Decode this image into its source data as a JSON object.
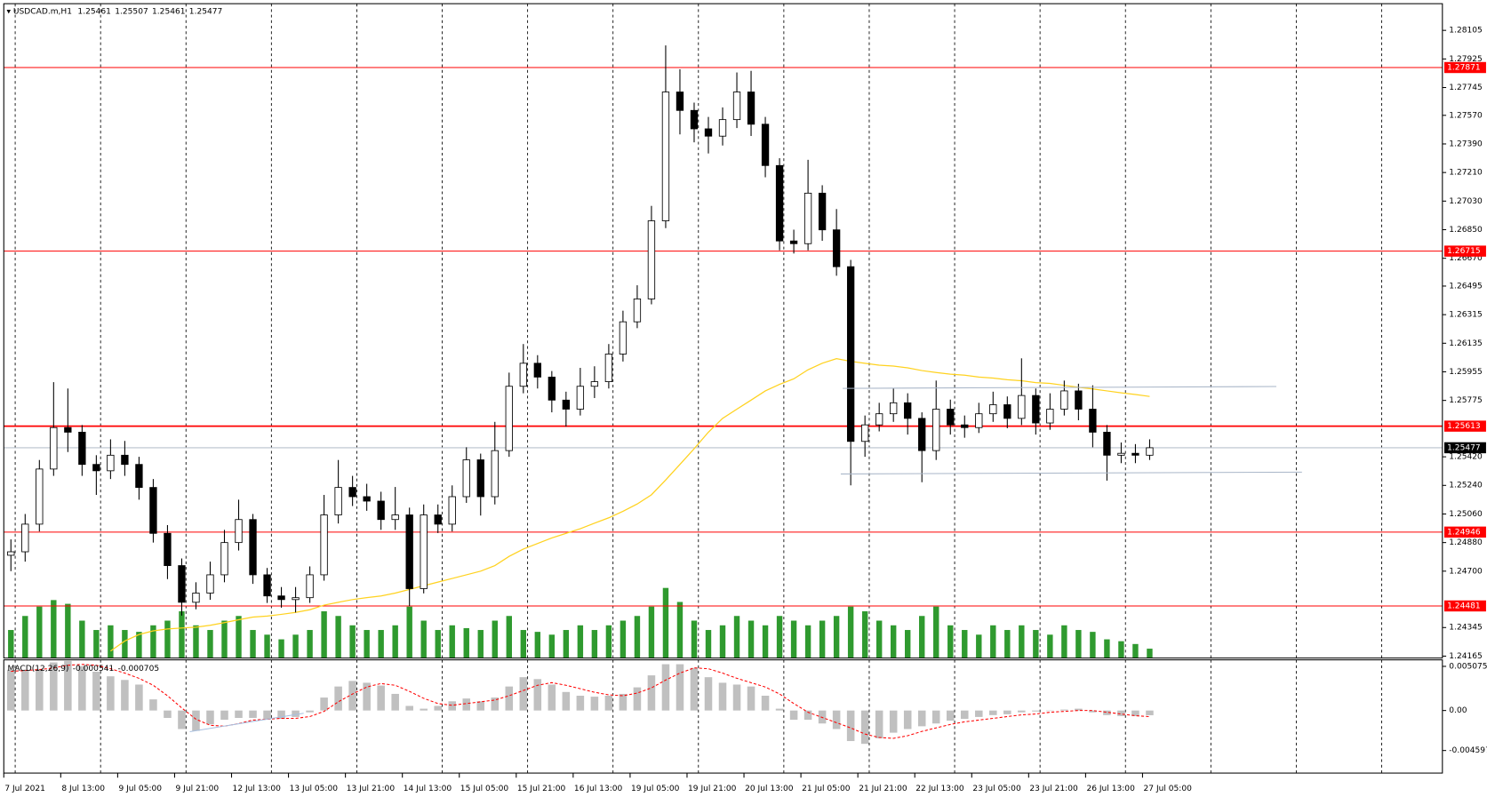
{
  "chart_data": [
    {
      "type": "candlestick",
      "title": "USDCAD.m,H1",
      "header_values": [
        1.25461,
        1.25507,
        1.25461,
        1.25477
      ],
      "x_labels": [
        "7 Jul 2021",
        "8 Jul 13:00",
        "9 Jul 05:00",
        "9 Jul 21:00",
        "12 Jul 13:00",
        "13 Jul 05:00",
        "13 Jul 21:00",
        "14 Jul 13:00",
        "15 Jul 05:00",
        "15 Jul 21:00",
        "16 Jul 13:00",
        "19 Jul 05:00",
        "19 Jul 21:00",
        "20 Jul 13:00",
        "21 Jul 05:00",
        "21 Jul 21:00",
        "22 Jul 13:00",
        "23 Jul 05:00",
        "23 Jul 21:00",
        "26 Jul 13:00",
        "27 Jul 05:00"
      ],
      "open": [
        1.248,
        1.24822,
        1.24996,
        1.25343,
        1.25604,
        1.25575,
        1.25372,
        1.25332,
        1.2543,
        1.25372,
        1.25227,
        1.24938,
        1.24735,
        1.24504,
        1.24562,
        1.24677,
        1.2488,
        1.25025,
        1.24677,
        1.24544,
        1.24521,
        1.24533,
        1.24677,
        1.25054,
        1.25227,
        1.25169,
        1.25141,
        1.25025,
        1.25054,
        1.2459,
        1.25054,
        1.24996,
        1.25169,
        1.25401,
        1.25169,
        1.25459,
        1.25864,
        1.26009,
        1.25922,
        1.25777,
        1.2572,
        1.25864,
        1.25893,
        1.26067,
        1.2627,
        1.26414,
        1.26906,
        1.27717,
        1.27601,
        1.27485,
        1.27439,
        1.27543,
        1.27717,
        1.27514,
        1.27254,
        1.26779,
        1.26762,
        1.2708,
        1.26849,
        1.26617,
        1.25517,
        1.25621,
        1.25691,
        1.2576,
        1.25662,
        1.25459,
        1.2572,
        1.25621,
        1.25604,
        1.25691,
        1.25748,
        1.25662,
        1.25806,
        1.25633,
        1.2572,
        1.25835,
        1.2572,
        1.25575,
        1.2543,
        1.25442,
        1.2543
      ],
      "high": [
        1.249,
        1.2506,
        1.254,
        1.2589,
        1.2585,
        1.2562,
        1.2543,
        1.2553,
        1.2552,
        1.2542,
        1.2528,
        1.2499,
        1.2478,
        1.2463,
        1.2476,
        1.2496,
        1.2515,
        1.2506,
        1.2472,
        1.246,
        1.246,
        1.2473,
        1.2518,
        1.254,
        1.253,
        1.2525,
        1.252,
        1.2523,
        1.251,
        1.2512,
        1.2512,
        1.2524,
        1.2548,
        1.2544,
        1.2564,
        1.2595,
        1.2613,
        1.2606,
        1.2596,
        1.2583,
        1.2598,
        1.2599,
        1.2613,
        1.2634,
        1.265,
        1.27,
        1.2801,
        1.2786,
        1.2765,
        1.2756,
        1.2762,
        1.2784,
        1.2785,
        1.2756,
        1.273,
        1.2685,
        1.2729,
        1.2713,
        1.2698,
        1.2666,
        1.2568,
        1.2576,
        1.2585,
        1.2582,
        1.257,
        1.259,
        1.2578,
        1.2568,
        1.2576,
        1.2583,
        1.258,
        1.2604,
        1.2585,
        1.2582,
        1.259,
        1.2588,
        1.2587,
        1.2562,
        1.2551,
        1.255,
        1.2553
      ],
      "low": [
        1.247,
        1.2476,
        1.2495,
        1.253,
        1.2545,
        1.253,
        1.2518,
        1.2528,
        1.253,
        1.2515,
        1.2488,
        1.2465,
        1.2442,
        1.2446,
        1.2452,
        1.2463,
        1.2483,
        1.2462,
        1.245,
        1.2447,
        1.2444,
        1.245,
        1.2464,
        1.25,
        1.2511,
        1.2508,
        1.2496,
        1.2496,
        1.2448,
        1.2456,
        1.2494,
        1.2495,
        1.2513,
        1.2505,
        1.2512,
        1.2542,
        1.2582,
        1.2585,
        1.257,
        1.2561,
        1.2568,
        1.2579,
        1.2585,
        1.2602,
        1.2623,
        1.2638,
        1.2686,
        1.2745,
        1.274,
        1.2733,
        1.2738,
        1.2749,
        1.2744,
        1.2718,
        1.2672,
        1.267,
        1.2672,
        1.2678,
        1.2656,
        1.2524,
        1.2542,
        1.2558,
        1.2564,
        1.2556,
        1.2526,
        1.254,
        1.2556,
        1.2554,
        1.2557,
        1.2564,
        1.256,
        1.2562,
        1.2556,
        1.2559,
        1.2568,
        1.2565,
        1.2548,
        1.2527,
        1.2538,
        1.2538,
        1.254
      ],
      "close": [
        1.24822,
        1.24996,
        1.25343,
        1.25604,
        1.25575,
        1.25372,
        1.25332,
        1.2543,
        1.25372,
        1.25227,
        1.24938,
        1.24735,
        1.24504,
        1.24562,
        1.24677,
        1.2488,
        1.25025,
        1.24677,
        1.24544,
        1.24521,
        1.24533,
        1.24677,
        1.25054,
        1.25227,
        1.25169,
        1.25141,
        1.25025,
        1.25054,
        1.2459,
        1.25054,
        1.24996,
        1.25169,
        1.25401,
        1.25169,
        1.25459,
        1.25864,
        1.26009,
        1.25922,
        1.25777,
        1.2572,
        1.25864,
        1.25893,
        1.26067,
        1.2627,
        1.26414,
        1.26906,
        1.27717,
        1.27601,
        1.27485,
        1.27439,
        1.27543,
        1.27717,
        1.27514,
        1.27254,
        1.26779,
        1.26762,
        1.2708,
        1.26849,
        1.26617,
        1.25517,
        1.25621,
        1.25691,
        1.2576,
        1.25662,
        1.25459,
        1.2572,
        1.25621,
        1.25604,
        1.25691,
        1.25748,
        1.25662,
        1.25806,
        1.25633,
        1.2572,
        1.25835,
        1.2572,
        1.25575,
        1.2543,
        1.25442,
        1.2543,
        1.25477
      ],
      "ma": {
        "color": "#ffd21f",
        "values": [
          null,
          null,
          null,
          null,
          null,
          null,
          null,
          1.24197,
          1.2426,
          1.24301,
          1.24324,
          1.24336,
          1.24342,
          1.24347,
          1.24359,
          1.24376,
          1.24394,
          1.24411,
          1.24417,
          1.24428,
          1.2444,
          1.24457,
          1.24486,
          1.24504,
          1.24521,
          1.24533,
          1.24544,
          1.24562,
          1.24585,
          1.24608,
          1.24631,
          1.24654,
          1.24677,
          1.247,
          1.24735,
          1.24793,
          1.24839,
          1.24874,
          1.24909,
          1.24938,
          1.24967,
          1.25002,
          1.25036,
          1.25077,
          1.25123,
          1.25181,
          1.25274,
          1.25372,
          1.25471,
          1.25575,
          1.25662,
          1.2572,
          1.25777,
          1.25835,
          1.25876,
          1.25911,
          1.25968,
          1.26009,
          1.26038,
          1.26021,
          1.26009,
          1.25997,
          1.25991,
          1.2598,
          1.25963,
          1.25951,
          1.2594,
          1.25934,
          1.25922,
          1.25916,
          1.25905,
          1.25899,
          1.25887,
          1.25882,
          1.2587,
          1.25858,
          1.25847,
          1.25835,
          1.25823,
          1.25812,
          1.258
        ]
      },
      "volume": {
        "color": "#2f9a2f",
        "values": [
          30,
          45,
          55,
          62,
          58,
          40,
          30,
          35,
          30,
          28,
          35,
          40,
          50,
          35,
          30,
          40,
          45,
          30,
          25,
          20,
          25,
          30,
          50,
          45,
          35,
          30,
          30,
          35,
          55,
          40,
          30,
          35,
          32,
          30,
          40,
          45,
          30,
          28,
          25,
          30,
          35,
          30,
          35,
          40,
          45,
          55,
          75,
          60,
          40,
          30,
          35,
          45,
          40,
          35,
          45,
          40,
          35,
          40,
          45,
          55,
          50,
          40,
          35,
          30,
          45,
          55,
          35,
          30,
          25,
          35,
          30,
          35,
          30,
          25,
          35,
          30,
          28,
          20,
          18,
          15,
          10
        ],
        "lim": [
          0,
          700
        ]
      },
      "levels": [
        1.27871,
        1.26715,
        1.25613,
        1.24946,
        1.24481
      ],
      "level_color": "#ff0000",
      "current_price": 1.25477,
      "ylim": [
        1.24153,
        1.28273
      ],
      "yticks": [
        1.28105,
        1.27925,
        1.27745,
        {
          "value": 1.2757,
          "label": "1.27570"
        },
        {
          "value": 1.2739,
          "label": "1.27390"
        },
        {
          "value": 1.2721,
          "label": "1.27210"
        },
        {
          "value": 1.2703,
          "label": "1.27030"
        },
        {
          "value": 1.2685,
          "label": "1.26850"
        },
        {
          "value": 1.2667,
          "label": "1.26670"
        },
        1.26495,
        1.26315,
        1.26135,
        1.25955,
        1.25775,
        {
          "value": 1.2542,
          "label": "1.25420"
        },
        {
          "value": 1.2524,
          "label": "1.25240"
        },
        {
          "value": 1.2506,
          "label": "1.25060"
        },
        {
          "value": 1.2488,
          "label": "1.24880"
        },
        {
          "value": 1.247,
          "label": "1.24700"
        },
        1.24345,
        1.24165
      ]
    },
    {
      "type": "macd",
      "title": "MACD(12,26,9)",
      "histogram": {
        "color": "#c0c0c0",
        "values": [
          0.00468,
          0.00468,
          0.00478,
          0.00553,
          0.0057,
          0.0051,
          0.00446,
          0.00393,
          0.00351,
          0.00298,
          0.00128,
          -0.00085,
          -0.00213,
          -0.00234,
          -0.00159,
          -0.00106,
          -0.00085,
          -0.00085,
          -0.00106,
          -0.00096,
          -0.00074,
          -0.00021,
          0.00149,
          0.00276,
          0.0034,
          0.00319,
          0.00287,
          0.00191,
          0.00053,
          0.00021,
          0.00053,
          0.00106,
          0.00138,
          0.00106,
          0.00149,
          0.00276,
          0.00383,
          0.00361,
          0.00298,
          0.00213,
          0.0017,
          0.00159,
          0.0017,
          0.00191,
          0.00266,
          0.00404,
          0.00532,
          0.00532,
          0.00489,
          0.00383,
          0.00319,
          0.00298,
          0.00276,
          0.0017,
          0.00021,
          -0.00106,
          -0.00106,
          -0.00149,
          -0.00213,
          -0.00351,
          -0.00383,
          -0.00319,
          -0.00255,
          -0.00213,
          -0.00181,
          -0.00149,
          -0.00117,
          -0.00096,
          -0.00074,
          -0.00053,
          -0.00043,
          -0.00021,
          -0.00011,
          0,
          0.00011,
          0.00021,
          -0.00021,
          -0.00053,
          -0.00064,
          -0.00064,
          -0.000541
        ]
      },
      "signal": {
        "color": "#ff0000",
        "values": [
          0.0045,
          0.0046,
          0.0047,
          0.0049,
          0.0052,
          0.0053,
          0.0052,
          0.0048,
          0.0043,
          0.0037,
          0.0029,
          0.0017,
          0.0003,
          -0.001,
          -0.0017,
          -0.0018,
          -0.0015,
          -0.0011,
          -0.001,
          -0.0009,
          -0.0009,
          -0.0007,
          -0.0001,
          0.001,
          0.0019,
          0.0027,
          0.0031,
          0.0029,
          0.0022,
          0.0014,
          0.0008,
          0.0006,
          0.0008,
          0.001,
          0.0012,
          0.0017,
          0.0023,
          0.0029,
          0.0032,
          0.0029,
          0.0025,
          0.0021,
          0.0018,
          0.0017,
          0.002,
          0.0026,
          0.0035,
          0.0043,
          0.0049,
          0.0048,
          0.0043,
          0.0037,
          0.0032,
          0.0027,
          0.0019,
          0.0008,
          -0.0002,
          -0.0008,
          -0.0014,
          -0.002,
          -0.0027,
          -0.0031,
          -0.0032,
          -0.0029,
          -0.0024,
          -0.002,
          -0.0016,
          -0.0013,
          -0.0011,
          -0.0009,
          -0.0007,
          -0.0005,
          -0.0004,
          -0.0002,
          -0.0001,
          0,
          0,
          -0.0002,
          -0.0004,
          -0.0006,
          -0.000705
        ]
      },
      "ylim": [
        -0.00719,
        0.00582
      ],
      "yticks": [
        0.005075,
        {
          "value": 0,
          "label": "0.00"
        },
        -0.004597
      ]
    }
  ]
}
